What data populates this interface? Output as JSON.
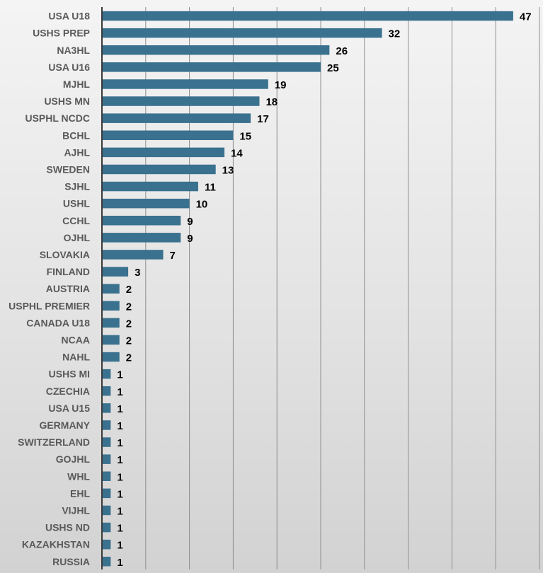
{
  "chart_data": {
    "type": "bar",
    "orientation": "horizontal",
    "title": "",
    "xlabel": "",
    "ylabel": "",
    "grid": true,
    "xlim": [
      0,
      50
    ],
    "bar_color": "#3a718f",
    "categories": [
      "USA U18",
      "USHS PREP",
      "NA3HL",
      "USA U16",
      "MJHL",
      "USHS MN",
      "USPHL NCDC",
      "BCHL",
      "AJHL",
      "SWEDEN",
      "SJHL",
      "USHL",
      "CCHL",
      "OJHL",
      "SLOVAKIA",
      "FINLAND",
      "AUSTRIA",
      "USPHL PREMIER",
      "CANADA U18",
      "NCAA",
      "NAHL",
      "USHS MI",
      "CZECHIA",
      "USA U15",
      "GERMANY",
      "SWITZERLAND",
      "GOJHL",
      "WHL",
      "EHL",
      "VIJHL",
      "USHS ND",
      "KAZAKHSTAN",
      "RUSSIA"
    ],
    "values": [
      47,
      32,
      26,
      25,
      19,
      18,
      17,
      15,
      14,
      13,
      11,
      10,
      9,
      9,
      7,
      3,
      2,
      2,
      2,
      2,
      2,
      1,
      1,
      1,
      1,
      1,
      1,
      1,
      1,
      1,
      1,
      1,
      1
    ]
  }
}
